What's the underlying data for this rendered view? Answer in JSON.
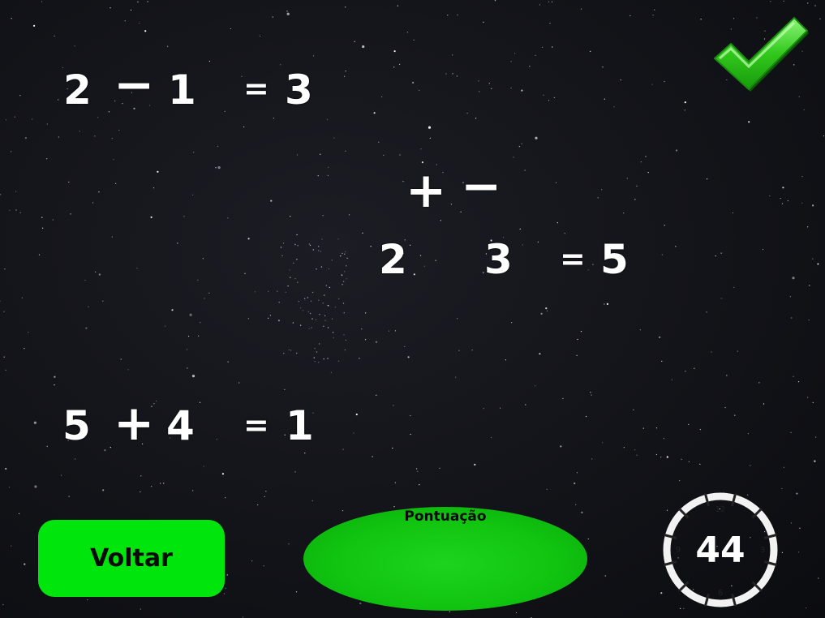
{
  "colors": {
    "background": "#121318",
    "text": "#ffffff",
    "button_green": "#00e60c",
    "score_green": "#10c410",
    "check_green": "#2ecc1a"
  },
  "equations": [
    {
      "a": "2",
      "op": "−",
      "b": "1",
      "eq": "=",
      "result": "3"
    },
    {
      "a": "2",
      "op": "",
      "b": "3",
      "eq": "=",
      "result": "5"
    },
    {
      "a": "5",
      "op": "+",
      "b": "4",
      "eq": "=",
      "result": "1"
    }
  ],
  "operators": {
    "plus": "+",
    "minus": "−"
  },
  "controls": {
    "check_icon": "checkmark-icon",
    "back_label": "Voltar"
  },
  "score": {
    "label": "Pontuação",
    "value": ""
  },
  "timer": {
    "value": "44",
    "dial_labels": {
      "top": "12",
      "right": "3",
      "bottom": "6",
      "left": "9"
    }
  }
}
